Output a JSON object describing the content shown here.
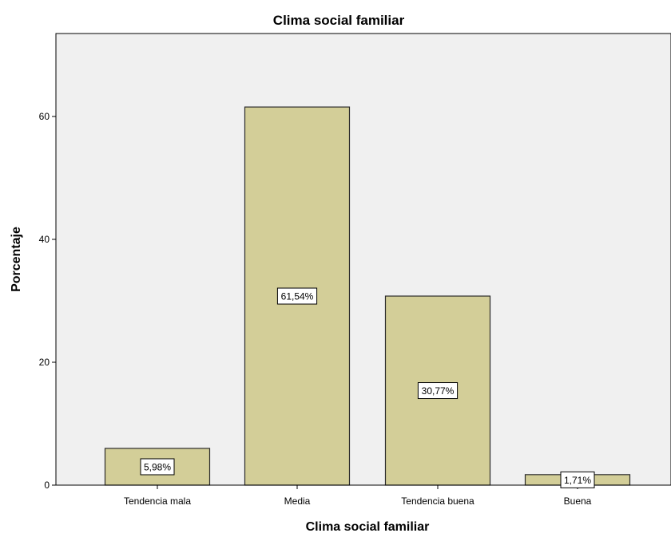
{
  "chart_data": {
    "type": "bar",
    "title": "Clima social familiar",
    "xlabel": "Clima social familiar",
    "ylabel": "Porcentaje",
    "categories": [
      "Tendencia mala",
      "Media",
      "Tendencia buena",
      "Buena"
    ],
    "values": [
      5.98,
      61.54,
      30.77,
      1.71
    ],
    "data_labels": [
      "5,98%",
      "61,54%",
      "30,77%",
      "1,71%"
    ],
    "yticks": [
      "0",
      "20",
      "40",
      "60"
    ],
    "ylim": [
      0,
      73.5
    ],
    "grid": false,
    "legend": "none",
    "colors": {
      "bar_fill": "#d3ce98",
      "bar_stroke": "#2b2b2b",
      "plot_bg": "#f0f0f0",
      "axis": "#000000",
      "label_box": "#ffffff"
    }
  }
}
